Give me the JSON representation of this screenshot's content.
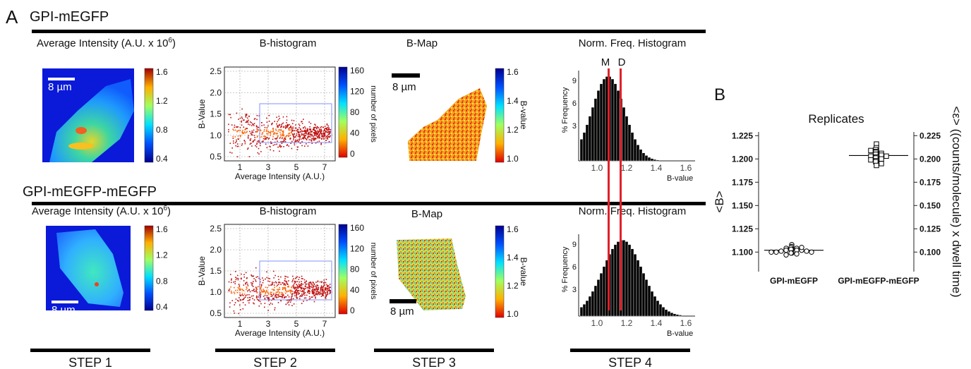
{
  "panel_a": {
    "label": "A",
    "rows": [
      {
        "title": "GPI-mEGFP",
        "step1": {
          "title": "Average Intensity (A.U. x 10",
          "sup": "6",
          "close": ")",
          "scale": "8 µm",
          "colorbar": [
            "1.6",
            "1.2",
            "0.8",
            "0.4"
          ]
        },
        "step2": {
          "title": "B-histogram",
          "ylabel": "B-Value",
          "xlabel": "Average Intensity (A.U.)",
          "yticks": [
            "2.5",
            "2.0",
            "1.5",
            "1.0",
            "0.5"
          ],
          "xticks": [
            "1",
            "3",
            "5",
            "7"
          ],
          "colorbar": [
            "160",
            "120",
            "80",
            "40",
            "0"
          ],
          "colorbar_label": "number of pixels"
        },
        "step3": {
          "title": "B-Map",
          "scale": "8 µm",
          "colorbar": [
            "1.6",
            "1.4",
            "1.2",
            "1.0"
          ],
          "colorbar_label": "B-value"
        },
        "step4": {
          "title": "Norm. Freq. Histogram",
          "ylabel": "% Frequency",
          "yticks": [
            "9",
            "6",
            "3"
          ],
          "xticks": [
            "1.0",
            "1.2",
            "1.4",
            "1.6"
          ],
          "xlabel": "B-value",
          "markers": [
            "M",
            "D"
          ]
        }
      },
      {
        "title": "GPI-mEGFP-mEGFP",
        "step1": {
          "title": "Average Intensity (A.U. x 10",
          "sup": "6",
          "close": ")",
          "scale": "8 µm",
          "colorbar": [
            "1.6",
            "1.2",
            "0.8",
            "0.4"
          ]
        },
        "step2": {
          "title": "B-histogram",
          "ylabel": "B-Value",
          "xlabel": "Average Intensity (A.U.)",
          "yticks": [
            "2.5",
            "2.0",
            "1.5",
            "1.0",
            "0.5"
          ],
          "xticks": [
            "1",
            "3",
            "5",
            "7"
          ],
          "colorbar": [
            "160",
            "120",
            "80",
            "40",
            "0"
          ],
          "colorbar_label": "number of pixels"
        },
        "step3": {
          "title": "B-Map",
          "scale": "8 µm",
          "colorbar": [
            "1.6",
            "1.4",
            "1.2",
            "1.0"
          ],
          "colorbar_label": "B-value"
        },
        "step4": {
          "title": "Norm. Freq. Histogram",
          "ylabel": "% Frequency",
          "yticks": [
            "9",
            "6",
            "3"
          ],
          "xticks": [
            "1.0",
            "1.2",
            "1.4",
            "1.6"
          ],
          "xlabel": "B-value"
        }
      }
    ],
    "steps": [
      "STEP 1",
      "STEP 2",
      "STEP 3",
      "STEP 4"
    ]
  },
  "panel_b_label": "B",
  "chart_data": {
    "type": "strip",
    "title": "Replicates",
    "y_label": "<B>",
    "y2_label": "<ε> ((counts/molecule) x dwell time)",
    "categories": [
      "GPI-mEGFP",
      "GPI-mEGFP-mEGFP"
    ],
    "values": [
      [
        1.108,
        1.106,
        1.105,
        1.104,
        1.104,
        1.103,
        1.103,
        1.102,
        1.102,
        1.102,
        1.101,
        1.101,
        1.1,
        1.1,
        1.099,
        1.099,
        1.098,
        1.097,
        1.105,
        1.1
      ],
      [
        1.216,
        1.212,
        1.21,
        1.208,
        1.207,
        1.206,
        1.205,
        1.205,
        1.204,
        1.203,
        1.202,
        1.201,
        1.2,
        1.199,
        1.198,
        1.197,
        1.195,
        1.193,
        1.209,
        1.203
      ]
    ],
    "ylim": [
      1.079,
      1.229
    ],
    "yticks": [
      {
        "value": 1.1,
        "label": "1.100"
      },
      {
        "value": 1.125,
        "label": "1.125"
      },
      {
        "value": 1.15,
        "label": "1.150"
      },
      {
        "value": 1.175,
        "label": "1.175"
      },
      {
        "value": 1.2,
        "label": "1.200"
      },
      {
        "value": 1.225,
        "label": "1.225"
      }
    ],
    "y2lim": [
      0.079,
      0.229
    ],
    "y2ticks": [
      {
        "value": 0.1,
        "label": "0.100"
      },
      {
        "value": 0.125,
        "label": "0.125"
      },
      {
        "value": 0.15,
        "label": "0.150"
      },
      {
        "value": 0.175,
        "label": "0.175"
      },
      {
        "value": 0.2,
        "label": "0.200"
      },
      {
        "value": 0.225,
        "label": "0.225"
      }
    ],
    "markers": [
      "circle",
      "square"
    ]
  }
}
